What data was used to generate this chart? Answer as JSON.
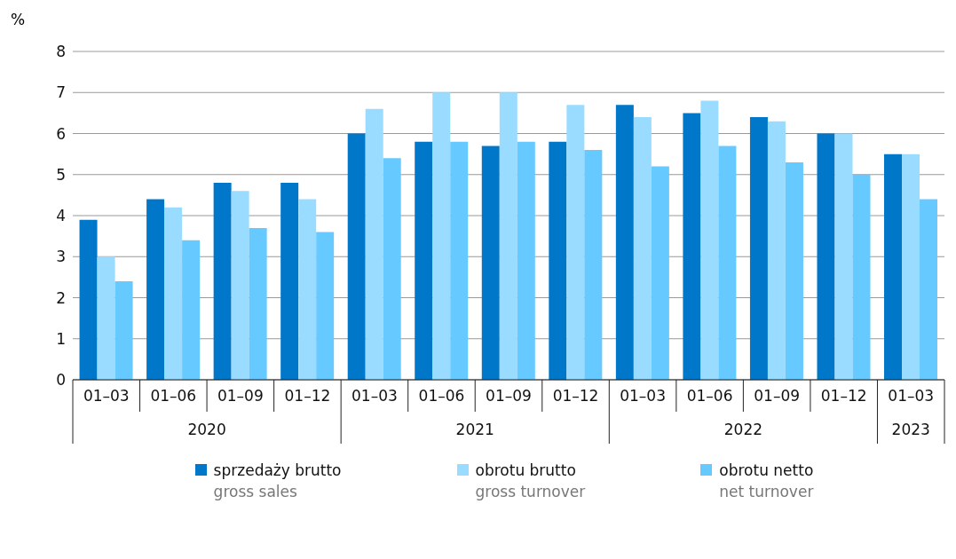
{
  "chart_data": {
    "type": "bar",
    "ylabel": "%",
    "categories": [
      "01–03",
      "01–06",
      "01–09",
      "01–12",
      "01–03",
      "01–06",
      "01–09",
      "01–12",
      "01–03",
      "01–06",
      "01–09",
      "01–12",
      "01–03"
    ],
    "annotations": [
      "2020",
      "2021",
      "2022",
      "2023"
    ],
    "series": [
      {
        "name": "sprzedaży brutto\ngross sales",
        "color": "#0077c8",
        "values": [
          3.9,
          4.4,
          4.8,
          4.8,
          6.0,
          5.8,
          5.7,
          5.8,
          6.7,
          6.5,
          6.4,
          6.0,
          5.5
        ]
      },
      {
        "name": "obrotu brutto\ngross turnover",
        "color": "#99dcff",
        "values": [
          3.0,
          4.2,
          4.6,
          4.4,
          6.6,
          7.0,
          7.0,
          6.7,
          6.4,
          6.8,
          6.3,
          6.0,
          5.5
        ]
      },
      {
        "name": "obrotu netto\nnet turnover",
        "color": "#66c9ff",
        "values": [
          2.4,
          3.4,
          3.7,
          3.6,
          5.4,
          5.8,
          5.8,
          5.6,
          5.2,
          5.7,
          5.3,
          5.0,
          4.4
        ]
      }
    ],
    "ylim": [
      0,
      8
    ],
    "yticks": [
      0,
      1,
      2,
      3,
      4,
      5,
      6,
      7,
      8
    ],
    "grid": "y",
    "legend": "bottom"
  }
}
